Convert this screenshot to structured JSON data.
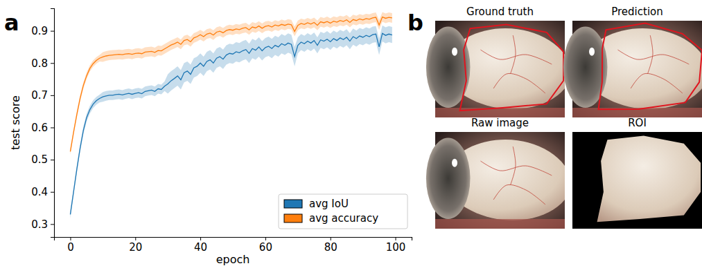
{
  "chart_data": {
    "type": "line",
    "x_label": "epoch",
    "y_label": "test score",
    "xlim": [
      -5,
      105
    ],
    "ylim": [
      0.26,
      0.97
    ],
    "xticks": [
      0,
      20,
      40,
      60,
      80,
      100
    ],
    "yticks": [
      0.3,
      0.4,
      0.5,
      0.6,
      0.7,
      0.8,
      0.9
    ],
    "legend": "lower right",
    "grid": false,
    "x": [
      0,
      1,
      2,
      3,
      4,
      5,
      6,
      7,
      8,
      9,
      10,
      11,
      12,
      13,
      14,
      15,
      16,
      17,
      18,
      19,
      20,
      21,
      22,
      23,
      24,
      25,
      26,
      27,
      28,
      29,
      30,
      31,
      32,
      33,
      34,
      35,
      36,
      37,
      38,
      39,
      40,
      41,
      42,
      43,
      44,
      45,
      46,
      47,
      48,
      49,
      50,
      51,
      52,
      53,
      54,
      55,
      56,
      57,
      58,
      59,
      60,
      61,
      62,
      63,
      64,
      65,
      66,
      67,
      68,
      69,
      70,
      71,
      72,
      73,
      74,
      75,
      76,
      77,
      78,
      79,
      80,
      81,
      82,
      83,
      84,
      85,
      86,
      87,
      88,
      89,
      90,
      91,
      92,
      93,
      94,
      95,
      96,
      97,
      98,
      99
    ],
    "series": [
      {
        "name": "avg IoU",
        "color": "#1f77b4",
        "values": [
          0.33,
          0.4,
          0.47,
          0.535,
          0.59,
          0.63,
          0.655,
          0.672,
          0.683,
          0.69,
          0.695,
          0.698,
          0.7,
          0.7,
          0.702,
          0.703,
          0.701,
          0.704,
          0.706,
          0.703,
          0.706,
          0.708,
          0.705,
          0.712,
          0.714,
          0.716,
          0.712,
          0.72,
          0.718,
          0.728,
          0.735,
          0.745,
          0.752,
          0.76,
          0.748,
          0.77,
          0.775,
          0.765,
          0.785,
          0.79,
          0.8,
          0.79,
          0.805,
          0.81,
          0.8,
          0.815,
          0.82,
          0.812,
          0.825,
          0.83,
          0.828,
          0.835,
          0.832,
          0.838,
          0.842,
          0.83,
          0.845,
          0.84,
          0.85,
          0.838,
          0.848,
          0.852,
          0.845,
          0.855,
          0.85,
          0.86,
          0.855,
          0.862,
          0.858,
          0.82,
          0.855,
          0.865,
          0.86,
          0.868,
          0.862,
          0.87,
          0.855,
          0.872,
          0.868,
          0.874,
          0.866,
          0.876,
          0.87,
          0.878,
          0.873,
          0.88,
          0.868,
          0.882,
          0.876,
          0.884,
          0.88,
          0.886,
          0.882,
          0.888,
          0.89,
          0.85,
          0.892,
          0.886,
          0.89,
          0.887
        ],
        "errors": [
          0.012,
          0.012,
          0.012,
          0.012,
          0.012,
          0.012,
          0.012,
          0.012,
          0.012,
          0.012,
          0.015,
          0.015,
          0.015,
          0.015,
          0.015,
          0.015,
          0.015,
          0.015,
          0.015,
          0.015,
          0.015,
          0.015,
          0.015,
          0.015,
          0.015,
          0.015,
          0.015,
          0.015,
          0.015,
          0.015,
          0.03,
          0.03,
          0.03,
          0.03,
          0.03,
          0.03,
          0.03,
          0.03,
          0.03,
          0.03,
          0.03,
          0.03,
          0.03,
          0.03,
          0.03,
          0.03,
          0.03,
          0.03,
          0.03,
          0.03,
          0.03,
          0.03,
          0.03,
          0.03,
          0.03,
          0.03,
          0.03,
          0.03,
          0.03,
          0.03,
          0.03,
          0.03,
          0.03,
          0.03,
          0.03,
          0.03,
          0.03,
          0.03,
          0.03,
          0.03,
          0.025,
          0.025,
          0.025,
          0.025,
          0.025,
          0.025,
          0.025,
          0.025,
          0.025,
          0.025,
          0.025,
          0.025,
          0.025,
          0.025,
          0.025,
          0.025,
          0.025,
          0.025,
          0.025,
          0.025,
          0.025,
          0.025,
          0.025,
          0.025,
          0.025,
          0.025,
          0.025,
          0.025,
          0.025,
          0.025
        ]
      },
      {
        "name": "avg accuracy",
        "color": "#ff7f0e",
        "values": [
          0.525,
          0.585,
          0.64,
          0.69,
          0.73,
          0.76,
          0.783,
          0.798,
          0.808,
          0.815,
          0.819,
          0.822,
          0.824,
          0.825,
          0.826,
          0.827,
          0.826,
          0.828,
          0.829,
          0.827,
          0.83,
          0.831,
          0.829,
          0.834,
          0.835,
          0.836,
          0.833,
          0.839,
          0.838,
          0.844,
          0.85,
          0.856,
          0.86,
          0.865,
          0.858,
          0.87,
          0.873,
          0.866,
          0.878,
          0.882,
          0.888,
          0.882,
          0.89,
          0.893,
          0.887,
          0.896,
          0.899,
          0.894,
          0.901,
          0.904,
          0.902,
          0.906,
          0.904,
          0.908,
          0.91,
          0.903,
          0.912,
          0.909,
          0.915,
          0.908,
          0.914,
          0.916,
          0.912,
          0.918,
          0.915,
          0.92,
          0.917,
          0.921,
          0.919,
          0.898,
          0.917,
          0.923,
          0.92,
          0.925,
          0.921,
          0.926,
          0.917,
          0.928,
          0.925,
          0.929,
          0.924,
          0.93,
          0.927,
          0.932,
          0.929,
          0.934,
          0.926,
          0.935,
          0.932,
          0.937,
          0.934,
          0.938,
          0.936,
          0.94,
          0.942,
          0.918,
          0.943,
          0.939,
          0.942,
          0.94
        ],
        "errors": [
          0.01,
          0.01,
          0.01,
          0.01,
          0.01,
          0.01,
          0.01,
          0.01,
          0.01,
          0.01,
          0.015,
          0.015,
          0.015,
          0.015,
          0.015,
          0.015,
          0.015,
          0.015,
          0.015,
          0.015,
          0.015,
          0.015,
          0.015,
          0.015,
          0.015,
          0.015,
          0.015,
          0.015,
          0.015,
          0.015,
          0.015,
          0.015,
          0.015,
          0.015,
          0.015,
          0.015,
          0.015,
          0.015,
          0.015,
          0.015,
          0.015,
          0.015,
          0.015,
          0.015,
          0.015,
          0.015,
          0.015,
          0.015,
          0.015,
          0.015,
          0.015,
          0.015,
          0.015,
          0.015,
          0.015,
          0.015,
          0.015,
          0.015,
          0.015,
          0.015,
          0.015,
          0.015,
          0.015,
          0.015,
          0.015,
          0.015,
          0.015,
          0.015,
          0.015,
          0.015,
          0.015,
          0.015,
          0.015,
          0.015,
          0.015,
          0.015,
          0.015,
          0.015,
          0.015,
          0.015,
          0.015,
          0.015,
          0.015,
          0.015,
          0.015,
          0.015,
          0.015,
          0.015,
          0.015,
          0.015,
          0.015,
          0.015,
          0.015,
          0.015,
          0.015,
          0.015,
          0.015,
          0.015,
          0.015,
          0.015
        ]
      }
    ]
  },
  "figure": {
    "panel_labels": [
      "a",
      "b"
    ],
    "images": [
      {
        "title": "Ground truth"
      },
      {
        "title": "Prediction"
      },
      {
        "title": "Raw image"
      },
      {
        "title": "ROI"
      }
    ]
  }
}
